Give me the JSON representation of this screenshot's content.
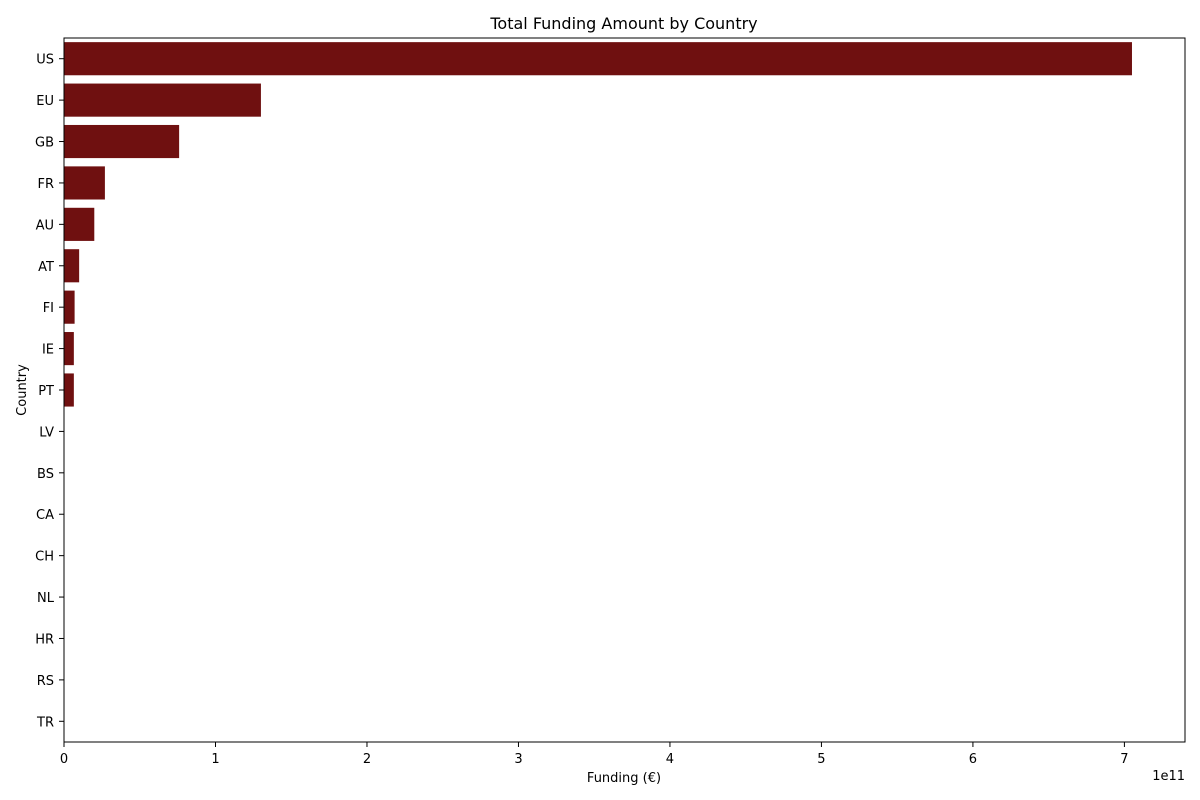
{
  "chart_data": {
    "type": "bar",
    "orientation": "horizontal",
    "title": "Total Funding Amount by Country",
    "xlabel": "Funding (€)",
    "ylabel": "Country",
    "x_offset_label": "1e11",
    "x_scale_factor": 100000000000,
    "xlim": [
      0,
      7.4
    ],
    "x_ticks": [
      0,
      1,
      2,
      3,
      4,
      5,
      6,
      7
    ],
    "grid": false,
    "bar_color": "#6f1010",
    "categories": [
      "US",
      "EU",
      "GB",
      "FR",
      "AU",
      "AT",
      "FI",
      "IE",
      "PT",
      "LV",
      "BS",
      "CA",
      "CH",
      "NL",
      "HR",
      "RS",
      "TR"
    ],
    "values": [
      7.05,
      1.3,
      0.76,
      0.27,
      0.2,
      0.1,
      0.07,
      0.065,
      0.065,
      0.001,
      0.0005,
      0.0003,
      0.0002,
      0.0001,
      5e-05,
      3e-05,
      2e-05
    ]
  }
}
